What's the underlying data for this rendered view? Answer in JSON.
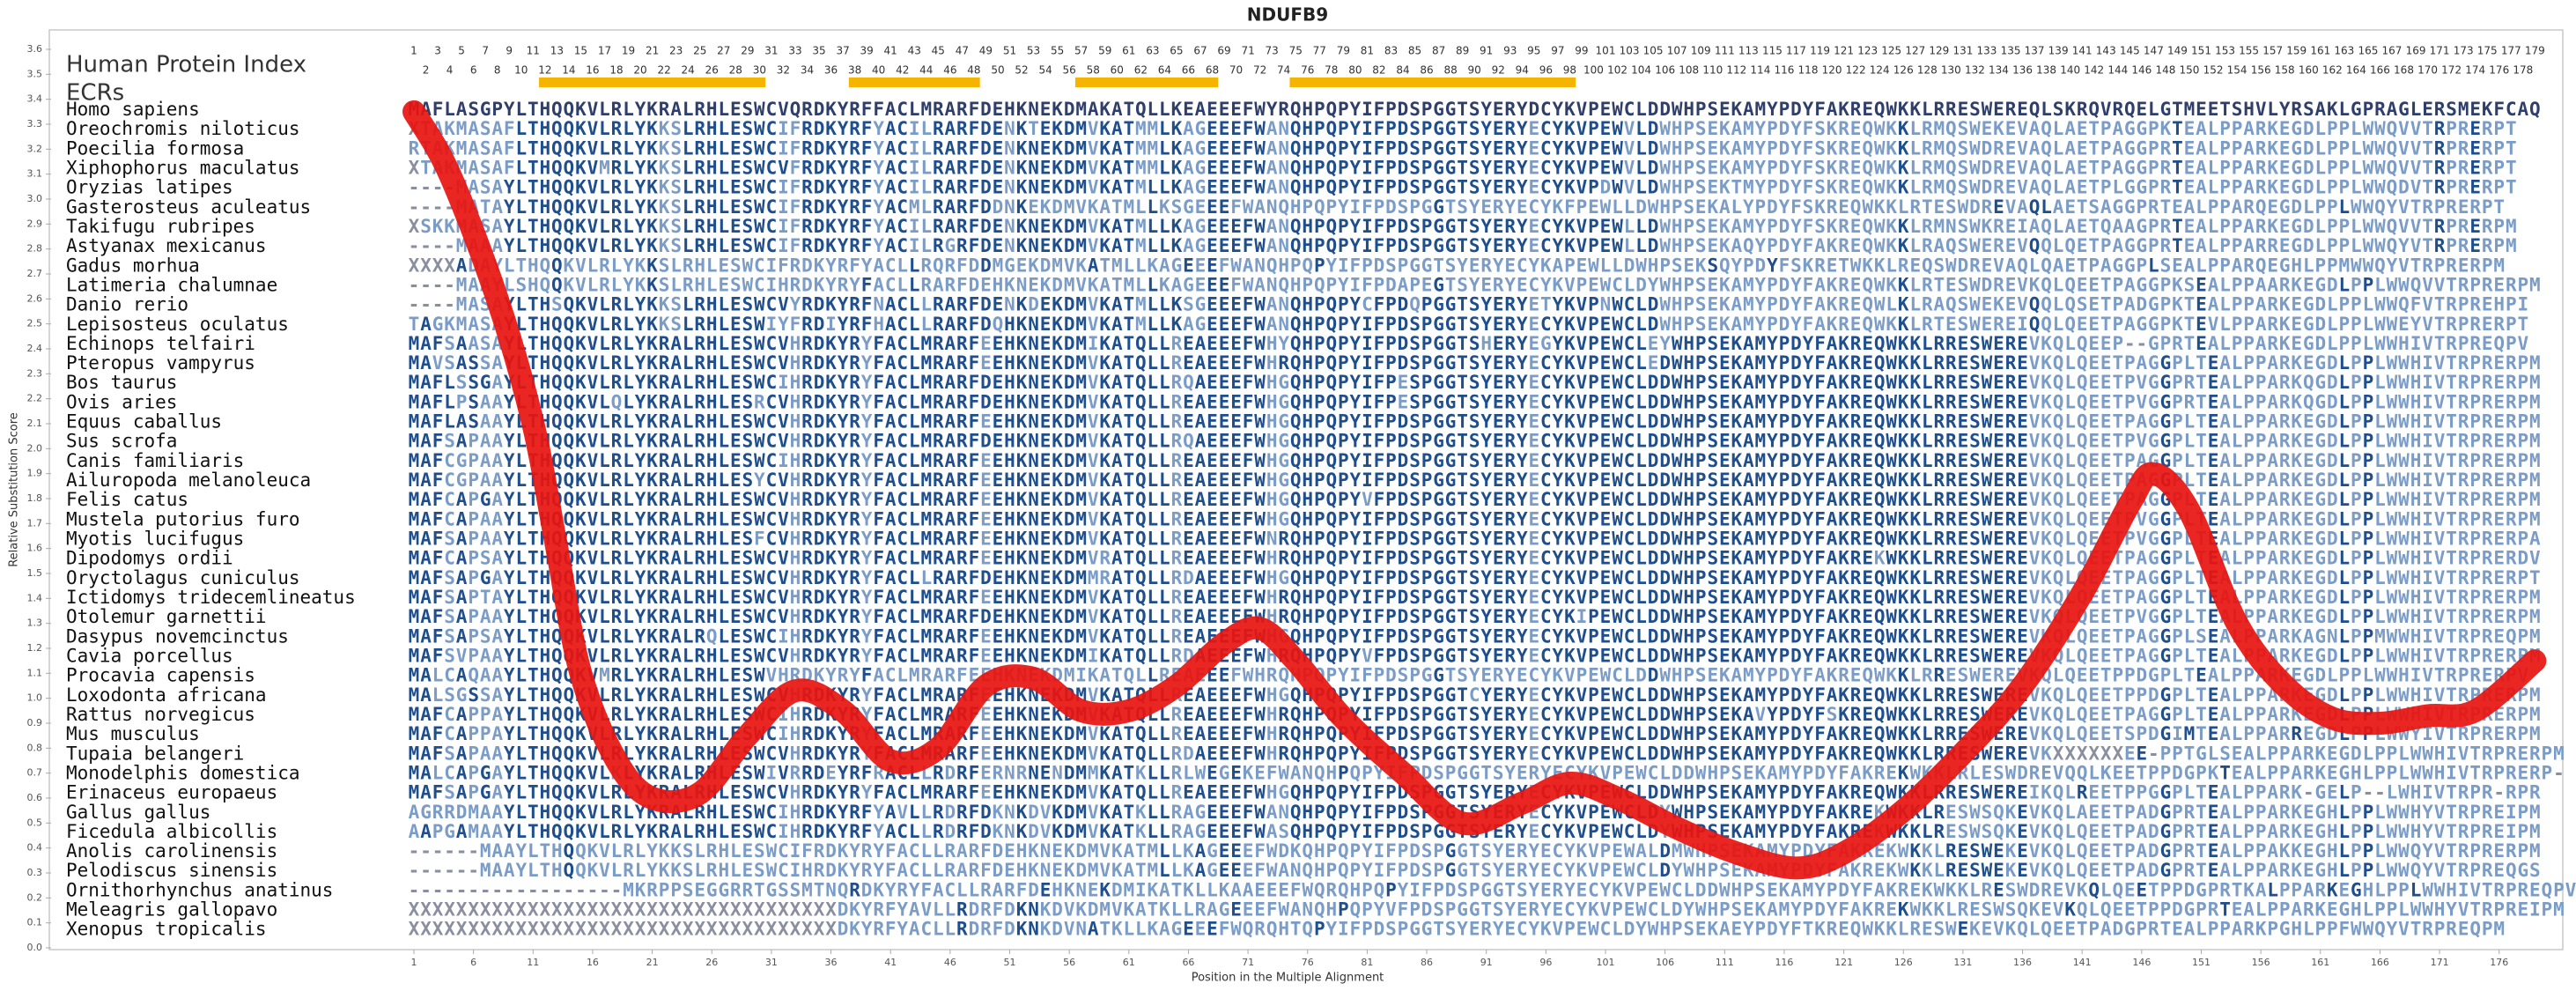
{
  "chart_data": {
    "type": "line",
    "title": "NDUFB9",
    "ylabel": "Relative Substitution Score",
    "xlabel": "Position in the Multiple Alignment",
    "color": "#e8140f",
    "x": [
      1,
      4,
      8,
      11,
      13,
      15,
      18,
      21,
      25,
      29,
      33,
      37,
      41,
      45,
      49,
      53,
      57,
      61,
      65,
      69,
      72,
      75,
      79,
      84,
      89,
      94,
      98,
      102,
      107,
      112,
      117,
      121,
      126,
      131,
      136,
      141,
      145,
      147,
      150,
      154,
      158,
      162,
      166,
      170,
      174,
      179
    ],
    "values": [
      3.35,
      3.1,
      2.6,
      2.1,
      1.6,
      1.1,
      0.75,
      0.6,
      0.62,
      0.85,
      1.03,
      0.95,
      0.75,
      0.8,
      1.05,
      1.08,
      0.95,
      0.95,
      1.05,
      1.22,
      1.28,
      1.15,
      0.92,
      0.7,
      0.5,
      0.58,
      0.66,
      0.6,
      0.48,
      0.38,
      0.32,
      0.38,
      0.55,
      0.78,
      1.05,
      1.42,
      1.78,
      1.9,
      1.75,
      1.3,
      1.05,
      0.92,
      0.9,
      0.93,
      0.95,
      1.15
    ],
    "xlim": [
      1,
      179
    ],
    "xticks": [
      1,
      6,
      11,
      16,
      21,
      26,
      31,
      36,
      41,
      46,
      51,
      56,
      61,
      66,
      71,
      76,
      81,
      86,
      91,
      96,
      101,
      106,
      111,
      116,
      121,
      126,
      131,
      136,
      141,
      146,
      151,
      156,
      161,
      166,
      171,
      176
    ],
    "ylim": [
      0,
      3.6
    ],
    "yticks": [
      {
        "value": 0,
        "label": "0.0"
      },
      {
        "value": 0.1,
        "label": "0.1"
      },
      {
        "value": 0.2,
        "label": "0.2"
      },
      {
        "value": 0.3,
        "label": "0.3"
      },
      {
        "value": 0.4,
        "label": "0.4"
      },
      {
        "value": 0.5,
        "label": "0.5"
      },
      {
        "value": 0.6,
        "label": "0.6"
      },
      {
        "value": 0.7,
        "label": "0.7"
      },
      {
        "value": 0.8,
        "label": "0.8"
      },
      {
        "value": 0.9,
        "label": "0.9"
      },
      {
        "value": 1,
        "label": "1.0"
      },
      {
        "value": 1.1,
        "label": "1.1"
      },
      {
        "value": 1.2,
        "label": "1.2"
      },
      {
        "value": 1.3,
        "label": "1.3"
      },
      {
        "value": 1.4,
        "label": "1.4"
      },
      {
        "value": 1.5,
        "label": "1.5"
      },
      {
        "value": 1.6,
        "label": "1.6"
      },
      {
        "value": 1.7,
        "label": "1.7"
      },
      {
        "value": 1.8,
        "label": "1.8"
      },
      {
        "value": 1.9,
        "label": "1.9"
      },
      {
        "value": 2,
        "label": "2.0"
      },
      {
        "value": 2.1,
        "label": "2.1"
      },
      {
        "value": 2.2,
        "label": "2.2"
      },
      {
        "value": 2.3,
        "label": "2.3"
      },
      {
        "value": 2.4,
        "label": "2.4"
      },
      {
        "value": 2.5,
        "label": "2.5"
      },
      {
        "value": 2.6,
        "label": "2.6"
      },
      {
        "value": 2.7,
        "label": "2.7"
      },
      {
        "value": 2.8,
        "label": "2.8"
      },
      {
        "value": 2.9,
        "label": "2.9"
      },
      {
        "value": 3,
        "label": "3.0"
      },
      {
        "value": 3.1,
        "label": "3.1"
      },
      {
        "value": 3.2,
        "label": "3.2"
      },
      {
        "value": 3.3,
        "label": "3.3"
      },
      {
        "value": 3.4,
        "label": "3.4"
      },
      {
        "value": 3.5,
        "label": "3.5"
      },
      {
        "value": 3.6,
        "label": "3.6"
      }
    ],
    "index_label": "Human Protein Index",
    "index_ticks": [
      1,
      2,
      3,
      4,
      5,
      6,
      7,
      8,
      9,
      10,
      11,
      12,
      13,
      14,
      15,
      16,
      17,
      18,
      19,
      20,
      21,
      22,
      23,
      24,
      25,
      26,
      27,
      28,
      29,
      30,
      31,
      32,
      33,
      34,
      35,
      36,
      37,
      38,
      39,
      40,
      41,
      42,
      43,
      44,
      45,
      46,
      47,
      48,
      49,
      50,
      51,
      52,
      53,
      54,
      55,
      56,
      57,
      58,
      59,
      60,
      61,
      62,
      63,
      64,
      65,
      66,
      67,
      68,
      69,
      70,
      71,
      72,
      73,
      74,
      75,
      76,
      77,
      78,
      79,
      80,
      81,
      82,
      83,
      84,
      85,
      86,
      87,
      88,
      89,
      90,
      91,
      92,
      93,
      94,
      95,
      96,
      97,
      98,
      99,
      100,
      101,
      102,
      103,
      104,
      105,
      106,
      107,
      108,
      109,
      110,
      111,
      112,
      113,
      114,
      115,
      116,
      117,
      118,
      119,
      120,
      121,
      122,
      123,
      124,
      125,
      126,
      127,
      128,
      129,
      130,
      131,
      132,
      133,
      134,
      135,
      136,
      137,
      138,
      139,
      140,
      141,
      142,
      143,
      144,
      145,
      146,
      147,
      148,
      149,
      150,
      151,
      152,
      153,
      154,
      155,
      156,
      157,
      158,
      159,
      160,
      161,
      162,
      163,
      164,
      165,
      166,
      167,
      168,
      169,
      170,
      171,
      172,
      173,
      174,
      175,
      176,
      177,
      178,
      179
    ],
    "ecr_label": "ECRs",
    "ecr_color": "#f5b400",
    "ecrs": [
      [
        12,
        30
      ],
      [
        38,
        48
      ],
      [
        57,
        68
      ],
      [
        75,
        98
      ]
    ],
    "species": [
      "Homo sapiens",
      "Oreochromis niloticus",
      "Poecilia formosa",
      "Xiphophorus maculatus",
      "Oryzias latipes",
      "Gasterosteus aculeatus",
      "Takifugu rubripes",
      "Astyanax mexicanus",
      "Gadus morhua",
      "Latimeria chalumnae",
      "Danio rerio",
      "Lepisosteus oculatus",
      "Echinops telfairi",
      "Pteropus vampyrus",
      "Bos taurus",
      "Ovis aries",
      "Equus caballus",
      "Sus scrofa",
      "Canis familiaris",
      "Ailuropoda melanoleuca",
      "Felis catus",
      "Mustela putorius furo",
      "Myotis lucifugus",
      "Dipodomys ordii",
      "Oryctolagus cuniculus",
      "Ictidomys tridecemlineatus",
      "Otolemur garnettii",
      "Dasypus novemcinctus",
      "Cavia porcellus",
      "Procavia capensis",
      "Loxodonta africana",
      "Rattus norvegicus",
      "Mus musculus",
      "Tupaia belangeri",
      "Monodelphis domestica",
      "Erinaceus europaeus",
      "Gallus gallus",
      "Ficedula albicollis",
      "Anolis carolinensis",
      "Pelodiscus sinensis",
      "Ornithorhynchus anatinus",
      "Meleagris gallopavo",
      "Xenopus tropicalis"
    ],
    "sequences": [
      "MAFLASGPYLTHQQKVLRLYKRALRHLESWCVQRDKYRFFACLMRARFDEHKNEKDMAKATQLLKEAEEEFWYRQHPQPYIFPDSPGGTSYERYDCYKVPEWCLDDWHPSEKAMYPDYFAKREQWKKLRRESWEREQLSKRQVRQELGTMEETSHVLYRSAKLGPRAGLERSMEKFCAQ",
      "XTAKMASAFLTHQQKVLRLYKKSLRHLESWCIFRDKYRFYACILRARFDENKTEKDMVKATMMLKAGEEEFWANQHPQPYIFPDSPGGTSYERYECYKVPEWVLDWHPSEKAMYPDYFSKREQWKKLRMQSWEKEVAQLAETPAGGPKTEALPPARKEGDLPPLWWQVVTRPRERPT",
      "RTAKMASAFLTHQQKVLRLYKKSLRHLESWCIFRDKYRFYACILRARFDENKNEKDMVKATMMLKAGEEEFWANQHPQPYIFPDSPGGTSYERYECYKVPEWVLDWHPSEKAMYPDYFSKREQWKKLRMQSWDREVAQLAETPAGGPRTEALPPARKEGDLPPLWWQVVTRPRERPT",
      "XTAKMASAFLTHQQKVMRLYKKSLRHLESWCVFRDKYRFYACILRARFDENKNEKDMVKATMMLKAGEEEFWANQHPQPYIFPDSPGGTSYERYECYKVPEWVLDWHPSEKAMYPDYFSKREQWKKLRMQSWDREVAQLAETPAGGPRTEALPPARKEGDLPPLWWQVVTRPRERPT",
      "----MASAYLTHQQKVLRLYKKSLRHLESWCIFRDKYRFYACILRARFDENKNEKDMVKATMLLKAGEEEFWANQHPQPYIFPDSPGGTSYERYECYKVPDWVLDWHPSEKTMYPDYFSKREQWKKLRMQSWDREVAQLAETPLGGPRTEALPPARKEGDLPPLWWQDVTRPRERPT",
      "----MATAYLTHQQKVLRLYKKSLRHLESWCIFRDKYRFYACMLRARFDDNKEKDMVKATMLLKSGEEEFWANQHPQPYIFPDSPGGTSYERYECYKFPEWLLDWHPSEKALYPDYFSKREQWKKLRTESWDREVAQLAETSAGGPRTEALPPARQEGDLPPLWWQYVTRPRERPT",
      "XSKKMASAYLTHQQKVLRLYKKSLRHLESWCIFRDKYRFYACILRARFDENKNEKDMVKATMLLKAGEEEFWANQHPQPYIFPDSPGGTSYERYECYKVPEWLLDWHPSEKAMYPDYFSKREQWKKLRMNSWKREIAQLAETQAAGPRTEALPPARKEGDLPPLWWQVVTRPRERPM",
      "----MAAAYLTHQQKVLRLYKKSLRHLESWCIFRDKYRFYACILRGRFDENKNEKDMVKATMLLKAGEEEFWANQHPQPYIFPDSPGGTSYERYECYKVPEWLLDWHPSEKAQYPDYFAKREQWKKLRAQSWEREVQQLQETPAGGPRTEALPPARREGDLPPLWWQYVTRPRERPM",
      "XXXXADAYLTHQQKVLRLYKKSLRHLESWCIFRDKYRFYACLLRQRFDDMGEKDMVKATMLLKAGEEEFWANQHPQPYIFPDSPGGTSYERYECYKAPEWLLDWHPSEKSQYPDYFSKRETWKKLREQSWDREVAQLQAETPAGGPLSEALPPARQEGHLPPMWWQYVTRPRERPM",
      "----MAAYLSHQQKVLRLYKKSLRHLESWCIHRDKYRYFACLLRARFDEHKNEKDMVKATMLLKAGEEEFWANQHPQPYIFPDAPEGTSYERYECYKVPEWCLDYWHPSEKAMYPDYFAKREQWKKLRTESWDREVKQLQEETPAGGPKSEALPPAARKEGDLPPLWWQVVTRPRERPM",
      "----MASAYLTHSQKVLRLYKKSLRHLESWCVYRDKYRFNACLLRARFDENKDEKDMVKATMLLKSGEEEFWANQHPQPYCFPDQPGGTSYERYETYKVPNWCLDWHPSEKAMYPDYFAKREQWLKLRAQSWEKEVQQLQSETPADGPKTEALPPARKEGDLPPLWWQFVTRPREHPI",
      "TAGKMASAYLTHQQKVLRLYKKSLRHLESWIYFRDIYRFHACLLRARFDQHKNEKDMVKATMLLKAGEEEFWANQHPQPYIFPDSPGGTSYERYECYKVPEWCLDWHPSEKAMYPDYFAKREQWKKLRTESWEREIQQLQEETPAGGPKTEVLPPARKEGDLPPLWWEYVTRPRERPT",
      "MAFSAASAYLTHQQKVLRLYKRALRHLESWCVHRDKYRYFACLMRARFEEHKNEKDMIKATQLLREAEEEFWHYQHPQPYIFPDSPGGTSHERYEGYKVPEWCLEYWHPSEKAMYPDYFAKREQWKKLRRESWEREVKQLQEEP--GPRTEALPPARKEGDLPPLWWHIVTRPREQPV",
      "MAVSASSAYLTHQQKVLRLYKRALRHLESWCVHRDKYRYFACLMRARFEEHKNEKDMVKATQLLREAEEEFWHRQHPQPYIFPDSPGGTSYERYECYKVPEWCLEDWHPSEKAMYPDYFAKREQWKKLRRESWEREVKQLQEETPAGGPLTEALPPARKEGDLPPLWWHIVTRPRERPM",
      "MAFLSSGAYLTHQQKVLRLYKRALRHLESWCIHRDKYRYFACLMRARFDEHKNEKDMVKATQLLRQAEEEFWHGQHPQPYIFPESPGGTSYERYECYKVPEWCLDDWHPSEKAMYPDYFAKREQWKKLRRESWEREVKQLQEETPVGGPRTEALPPARKQGDLPPLWWHIVTRPRERPM",
      "MAFLPSAAYLTHQQKVLQLYKRALRHLESRCVHRDKYRYFACLMRARFDEHKNEKDMVKATQLLREAEEEFWHGQHPQPYIFPESPGGTSYERYECYKVPEWCLDDWHPSEKAMYPDYFAKREQWKKLRRESWEREVKQLQEETPVGGPRTEALPPARKQGDLPPLWWHIVTRPRERPM",
      "MAFLASAAYLTHQQKVLRLYKRALRHLESWCVHRDKYRYFACLMRARFEEHKNEKDMVKATQLLREAEEEFWHGQHPQPYIFPDSPGGTSYERYECYKVPEWCLDDWHPSEKAMYPDYFAKREQWKKLRRESWEREVKQLQEETPAGGPLTEALPPARKEGDLPPLWWHIVTRPRERPM",
      "MAFSAPAAYLTHQQKVLRLYKRALRHLESWCVHRDKYRYFACLMRARFDEHKNEKDMVKATQLLRQAEEEFWHGQHPQPYIFPDSPGGTSYERYECYKVPEWCLDDWHPSEKAMYPDYFAKREQWKKLRRESWEREVKQLQEETPVGGPLTEALPPARKEGDLPPLWWHIVTRPRERPM",
      "MAFCGPAAYLTHQQKVLRLYKRALRHLESWCIHRDKYRYFACLMRARFEEHKNEKDMVKATQLLREAEEEFWHGQHPQPYIFPDSPGGTSYERYECYKVPEWCLDDWHPSEKAMYPDYFAKREQWKKLRRESWEREVKQLQEETPAGGPLTEALPPARKEGDLPPLWWHIVTRPRERPM",
      "MAFCGPAAYLTHQQKVLRLYKRALRHLESYCVHRDKYRYFACLMRARFEEHKNEKDMVKATQLLREAEEEFWHGQHPQPYIFPDSPGGTSYERYECYKVPEWCLDDWHPSEKAMYPDYFAKREQWKKLRRESWEREVKQLQEETPAGGPLTEALPPARKEGDLPPLWWHIVTRPRERPM",
      "MAFCAPGAYLTHQQKVLRLYKRALRHLESWCVHRDKYRYFACLMRARFEEHKNEKDMVKATQLLREAEEEFWHGQHPQPYVFPDSPGGTSYERYECYKVPEWCLDDWHPSEKAMYPDYFAKREQWKKLRRESWEREVKQLQEETPAGGPLTEALPPARKEGDLPPLWWHIVTRPRERPM",
      "MAFCAPAAYLTHQQKVLRLYKRALRHLESWCVHRDKYRYFACLMRARFEEHKNEKDMVKATQLLREAEEEFWHGQHPQPYIFPDSPGGTSYERYECYKVPEWCLDDWHPSEKAMYPDYFAKREQWKKLRRESWEREVKQLQEETPVGGPLTEALPPARKEGDLPPLWWHIVTRPRERPM",
      "MAFSAPAAYLTHQQKVLRLYKRALRHLESFCVHRDKYRYFACLMRARFEEHKNEKDMVKATQLLREAEEEFWNRQHPQPYIFPDSPGGTSYERYECYKVPEWCLDDWHPSEKAMYPDYFAKREQWKKLRRESWEREVKQLQEETPVGGPLTEALPPARKEGDLPPLWWHIVTRPRERPA",
      "MAFCAPSAYLTHQQKVLRLYKRALRHLESWCVHRDKYRYFACLMRARFEEHKNEKDMVRATQLLREAEEEFWHRQHPQPYIFPDSPGGTSYERYECYKVPEWCLDDWHPSEKAMYPDYFAKREKWKKLRRESWEREVKQLQEETPAGGPLTEALPPARKEGDLPPLWWHIVTRPRERDV",
      "MAFSAPGAYLTHQQKVLRLYKRALRHLESWCVHRDKYRYFACLLRARFDEHKNEKDMMRATQLLRDAEEEFWHGQHPQPYIFPDSPGGTSYERYECYKVPEWCLDDWHPSEKAMYPDYFAKREQWKKLRRESWEREVKQLQEETPAGGPLTEALPPARKEGDLPPLWWHIVTRPRERPT",
      "MAFSAPTAYLTHQQKVLRLYKRALRHLESWCVHRDKYRYFACLMRARFEEHKNEKDMVKATQLLREAEEEFWHRQHPQPYIFPDSPGGTSYERYECYKVPEWCLDDWHPSEKAMYPDYFAKREQWKKLRRESWEREVKQLQEETPAGGPLTEALPPARKEGDLPPLWWHIVTRPRERPM",
      "MAFSAPAAYLTHQQKVLRLYKRALRHLESWCVHRDKYRYFACLMRARFDEHKNEKDMVKATQLLREAEEEFWHRQHPQPYIFPDSPGGTSYERYECYKIPEWCLDDWHPSEKAMYPDYFAKREQWKKLRRESWEREVKQLQEETPVGGPLTEALPPARKEGDLPPLWWHIVTRPRERPM",
      "MAFSAPSAYLTHQQKVLRLYKRALRQLESWCIHRDKYRYFACLMRARFEEHKNEKDMVKATQLLREAEEEFWHGQHPQPYIFPDSPGGTSYERYECYKVPEWCLDDWHPSEKAMYPDYFAKREQWKKLRRESWEREVKQLQEETPAGGPLSEALPPARKAGNLPPMWWHIVTRPREQPM",
      "MAFSVPAAYLTHQQKVLRLYKRALRHLESWCVHRDKYRYFACLMRARFEEHKNEKDMIKATQLLRDAEEEFWHRQHPQPYVFPDSPGGTSYERYECYKVPEWCLDDWHPSEKAMYPDYFAKREQWKKLRRESWEREVKQLQEETPAGGPLTEALPPARKEGDLPPLWWHIVTRPRERPM",
      "MALCAQAAYLTHQQKVMRLYKRALRHLESWVHRDKYRYFACLMRARFEEHKNEKDMIKATQLLREAEEEFWHRQHPQPYIFPDSPGGTSYERYECYKVPEWCLDDWHPSEKAMYPDYFAKREQWKKLRRESWEREVKQLQEETPPDGPLTEALPPARKEGDLPPLWWHIVTRPRERPV",
      "MALSGSSAYLTHQQKVLRLYKRALRHLESWCVHRDKYRYFACLMRARFEEHKNEKDMVKATQLLREAEEEFWHGQHPQPYIFPDSPGGTCYERYECYKVPEWCLDDWHPSEKAMYPDYFAKREQWKKLRRESWEREVKQLQEETPPDGPLTEALPPARKEGDLPPLWWHIVTRPRERPM",
      "MAFCAPPAYLTHQQKVLRLYKRALRHLESWCIHRDKYRYFACLMRARFEEHKNEKDMVKATQLLREAEEEFWHRQHPQPYIFPDSPGGTSYERYECYKVPEWCLDDWHPSEKAVYPDYFSKREQWKKLRRESWEREVKQLQEETPAGGPLTEALPPARKEGDLPPLWWHIVTRPRERPM",
      "MAFCAPPAYLTHQQKVLRLYKRALRHLESWCIHRDKYRYFACLMRARFEEHKNEKDMVKATQLLREAEEEFWHRQHPQPYIFPDSPGGTSYERYECYKVPEWCLDDWHPSEKAMYPDYFAKREQWKKLRRESWEREVKQLQEETSPDGIMTEALPPARREGDLPPLWWYIVTRPRERPM",
      "MAFSAPAAYLTHQQKVLRLYKRALRHLESWCVHRDKYRYFACLMRARFEEHKNEKDMVKATQLLRDAEEEFWHRQHPQPYIFPDSPGGTSYERYECYKVPEWCLDDWHPSEKAMYPDYFAKREQWKKLRRESWEREVKXXXXXXEE-PPTGLSEALPPARKEGDLPPLWWHIVTRPRERPM",
      "MALCAPGAYLTHQQKVLKLYKRALRHLESWIVRRDEYRFRACLLRDRFERNRNENDMMKATKLLRLWEGEKEFWANQHPQPYIFPDSPGGTSYERYECYKVPEWCLDDWHPSEKAMYPDYFAKREKWKKLRLESWDREVQQLKEETPPDGPKTEALPPARKEGHLPPLWWHIVTRPRERP-",
      "MAFSAPGAYLTHQQKVLRLYKRALRHLESWCVHRDKYRYFACLMRARFEEHKNEKDMVKATQLLREAEEEFWHGQHPQPYIFPDSPGGTSYERYECYKVPEWCLDDWHPSEKAMYPDYFAKREQWKKLRRESWEREIKQLREETPPGGPLTEALPPARK-GELP--LWHIVTRPR-RPR",
      "AGRRDMAAYLTHQQKVLRLYKRALRHLESWCIHRDKYRFYAVLLRDRFDKNKDVKDMVKATKLLRAGEEEFWANQHPQPYIFPDSPGGTSYERYECYKVPEWCLDYWHPSEKAMYPDYFAKREKWKKLRESWSQKEVKQLAEETPADGPRTEALPPARKEGHLPPLWWHYVTRPREIPM",
      "AAPGAMAAYLTHQQKVLRLYKRALRHLESWCIHRDKYRFYACLLRDRFDKNKDVKDMVKATKLLRAGEEEFWASQHPQPYIFPDSPGGTSYERYECYKVPEWCLDYWHPSEKAMYPDYFAKREKWKKLRESWSQKEVKQLQEETPADGPRTEALPPARKEGHLPPLWWHYVTRPREIPM",
      "------MAAYLTHQQKVLRLYKKSLRHLESWCIFRDKYRYFACLLRARFDEHKNEKDMVKATMLLKAGEEEFWDKQHPQPYIFPDSPGGTSYERYECYKVPEWALDMWHPSEKAMYPDYFAKREKWKKLRESWEKEVKQLQEETPADGPRTEALPPAKKEGHLPPLWWQYVTRPRERPM",
      "------MAAYLTHQQKVLRLYKKSLRHLESWCIHRDKYRYFACLLRARFDEHKNEKDMVKATMLLKAGEEEFWANQHPQPYIFPDSPGGTSYERYECYKVPEWCLDYWHPSEKAMYPDYFAKREKWKKLRESWEKEVKQLQEETPADGPRTEALPPARKEGHLPPLWWQYVTRPREQGS",
      "------------------MKRPPSEGGRRTGSSMTNQRDKYRYFACLLRARFDEHKNEKDMIKATKLLKAAEEEFWQRQHPQPYIFPDSPGGTSYERYECYKVPEWCLDDWHPSEKAMYPDYFAKREKWKKLRESWDREVKQLQEETPPDGPRTKALPPARKEGHLPPLWWHIVTRPREQPV",
      "XXXXXXXXXXXXXXXXXXXXXXXXXXXXXXXXXXXXDKYRFYAVLLRDRFDKNKDVKDMVKATKLLRAGEEEFWANQHPQPYVFPDSPGGTSYERYECYKVPEWCLDYWHPSEKAMYPDYFAKREKWKKLRESWSQKEVKQLQEETPPDGPRTEALPPARKEGHLPPLWWHYVTRPREIPM",
      "XXXXXXXXXXXXXXXXXXXXXXXXXXXXXXXXXXXXDKYRFYACLLRDRFDKNKDVNATKLLKAGEEEFWQRQHTQPYIFPDSPGGTSYERYECYKVPEWCLDYWHPSEKAEYPDYFTKREQWKKLRESWEKEVKQLQEETPADGPRTEALPPARKPGHLPPFWWQYVTRPREQPM"
    ]
  }
}
